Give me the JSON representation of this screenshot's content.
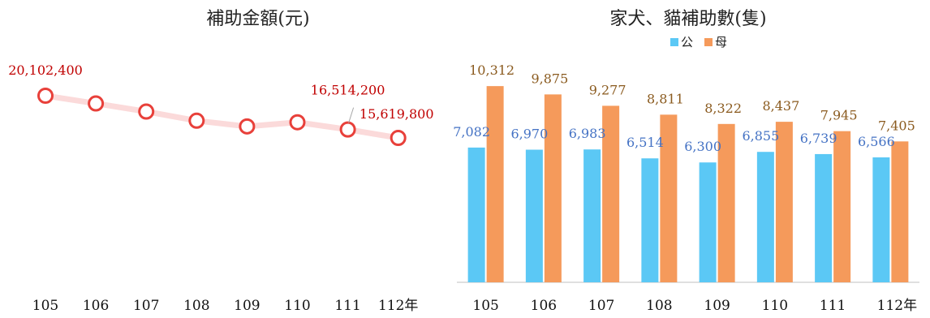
{
  "chart_data": [
    {
      "type": "line",
      "title": "補助金額(元)",
      "categories": [
        "105",
        "106",
        "107",
        "108",
        "109",
        "110",
        "111",
        "112年"
      ],
      "series": [
        {
          "values": [
            20102400,
            19280000,
            18420000,
            17450000,
            16840000,
            17280000,
            16514200,
            15619800
          ],
          "color": "#e8403a",
          "line_color": "#fbdada"
        }
      ],
      "data_labels": [
        {
          "index": 0,
          "text": "20,102,400"
        },
        {
          "index": 6,
          "text": "16,514,200"
        },
        {
          "index": 7,
          "text": "15,619,800"
        }
      ],
      "label_color": "#c00000",
      "grid": false,
      "legend": "none"
    },
    {
      "type": "bar",
      "title": "家犬、貓補助數(隻)",
      "categories": [
        "105",
        "106",
        "107",
        "108",
        "109",
        "110",
        "111",
        "112年"
      ],
      "ylim": [
        0,
        11000
      ],
      "series": [
        {
          "name": "公",
          "values": [
            7082,
            6970,
            6983,
            6514,
            6300,
            6855,
            6739,
            6566
          ],
          "labels": [
            "7,082",
            "6,970",
            "6,983",
            "6,514",
            "6,300",
            "6,855",
            "6,739",
            "6,566"
          ],
          "color": "#5bc8f5",
          "label_color": "#4472c4"
        },
        {
          "name": "母",
          "values": [
            10312,
            9875,
            9277,
            8811,
            8322,
            8437,
            7945,
            7405
          ],
          "labels": [
            "10,312",
            "9,875",
            "9,277",
            "8,811",
            "8,322",
            "8,437",
            "7,945",
            "7,405"
          ],
          "color": "#f59a5b",
          "label_color": "#8a5a1e"
        }
      ],
      "grid": false,
      "legend": "top-center"
    }
  ]
}
